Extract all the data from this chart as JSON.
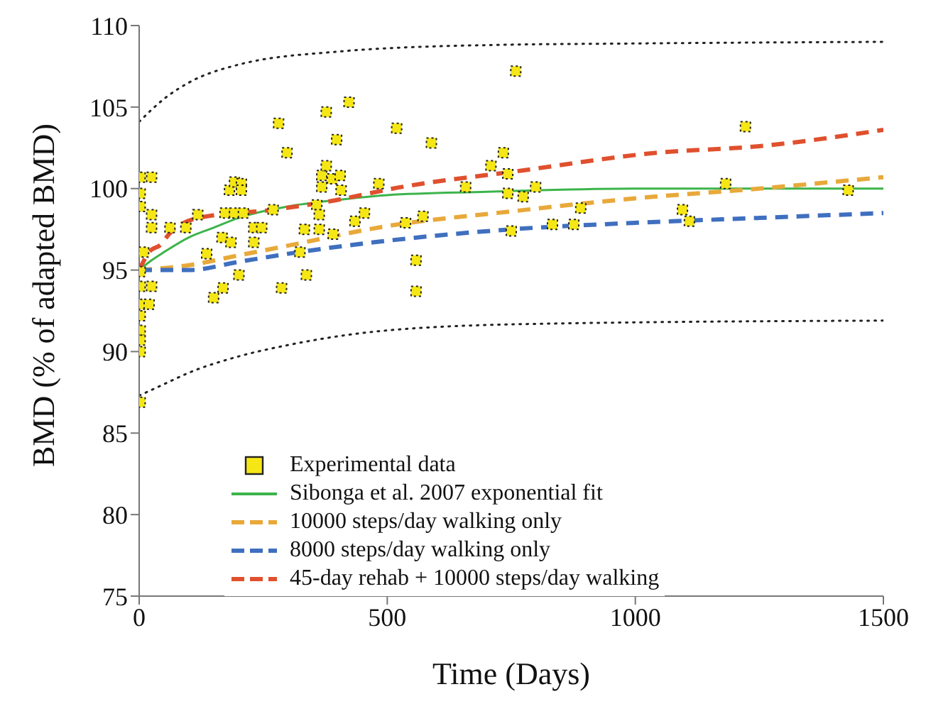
{
  "chart_data": {
    "type": "line",
    "xlabel": "Time (Days)",
    "ylabel": "BMD (% of adapted BMD)",
    "xlim": [
      0,
      1500
    ],
    "xticks": [
      0,
      500,
      1000,
      1500
    ],
    "ylim": [
      75,
      110
    ],
    "yticks": [
      75,
      80,
      85,
      90,
      95,
      100,
      105,
      110
    ],
    "grid": false,
    "legend": "bottom",
    "series": [
      {
        "type": "scatter",
        "name": "Experimental data",
        "color": "#f5e616",
        "marker": "square",
        "x": [
          2,
          25,
          2,
          2,
          25,
          25,
          9,
          2,
          2,
          25,
          2,
          20,
          2,
          2,
          2,
          2,
          2,
          62,
          94,
          118,
          136,
          150,
          169,
          167,
          185,
          201,
          173,
          192,
          210,
          182,
          192,
          206,
          206,
          231,
          247,
          231,
          270,
          281,
          298,
          287,
          333,
          324,
          337,
          363,
          358,
          363,
          368,
          368,
          377,
          389,
          405,
          407,
          398,
          377,
          423,
          391,
          435,
          454,
          483,
          519,
          589,
          759,
          734,
          709,
          743,
          658,
          743,
          774,
          799,
          537,
          572,
          558,
          558,
          750,
          833,
          876,
          890,
          1222,
          1182,
          1429,
          1095,
          1109
        ],
        "values": [
          100.7,
          100.7,
          99.7,
          98.9,
          98.4,
          97.6,
          96.1,
          94.9,
          94.0,
          94.0,
          92.9,
          92.9,
          92.2,
          91.3,
          90.7,
          90.0,
          86.9,
          97.6,
          97.6,
          98.4,
          96.0,
          93.3,
          93.9,
          97.0,
          96.7,
          94.7,
          98.5,
          98.5,
          98.5,
          99.9,
          100.4,
          100.3,
          99.9,
          97.6,
          97.6,
          96.7,
          98.7,
          104.0,
          102.2,
          93.9,
          97.5,
          96.1,
          94.7,
          97.5,
          99.0,
          98.4,
          100.1,
          100.8,
          101.4,
          100.6,
          100.8,
          99.9,
          103.0,
          104.7,
          105.3,
          97.2,
          98.0,
          98.5,
          100.3,
          103.7,
          102.8,
          107.2,
          102.2,
          101.4,
          100.9,
          100.1,
          99.7,
          99.5,
          100.1,
          97.9,
          98.3,
          95.6,
          93.7,
          97.4,
          97.8,
          97.8,
          98.8,
          103.8,
          100.3,
          99.9,
          98.7,
          98.0
        ]
      },
      {
        "type": "line",
        "name": "Sibonga et al. 2007 exponential fit",
        "color": "#3cb44b",
        "line_style": "solid",
        "marker": "none",
        "x": [
          0,
          25,
          50,
          100,
          150,
          200,
          300,
          400,
          500,
          700,
          1000,
          1500
        ],
        "values": [
          95,
          95.6,
          96.1,
          97.0,
          97.6,
          98.2,
          98.9,
          99.3,
          99.6,
          99.8,
          100.0,
          100
        ]
      },
      {
        "type": "line",
        "name": "10000 steps/day walking only",
        "color": "#e8a93a",
        "line_style": "dashed",
        "marker": "none",
        "x": [
          0,
          100,
          200,
          300,
          500,
          750,
          1000,
          1250,
          1500
        ],
        "values": [
          95,
          95.3,
          95.9,
          96.5,
          97.7,
          98.6,
          99.4,
          100.0,
          100.7
        ]
      },
      {
        "type": "line",
        "name": "8000 steps/day walking only",
        "color": "#3f6fbf",
        "line_style": "dashed",
        "marker": "none",
        "x": [
          0,
          100,
          200,
          300,
          500,
          750,
          1000,
          1250,
          1500
        ],
        "values": [
          95,
          95.0,
          95.5,
          96.0,
          96.8,
          97.5,
          97.9,
          98.2,
          98.5
        ]
      },
      {
        "type": "line",
        "name": "45-day rehab + 10000 steps/day walking",
        "color": "#e0502e",
        "line_style": "dashed",
        "marker": "none",
        "x": [
          0,
          20,
          45,
          60,
          120,
          270,
          380,
          530,
          770,
          1045,
          1250,
          1500
        ],
        "values": [
          95,
          96.1,
          96.6,
          97.2,
          98.2,
          98.7,
          99.2,
          100.1,
          101.1,
          102.2,
          102.6,
          103.6
        ]
      },
      {
        "type": "line",
        "color": "#222222",
        "line_style": "dotted",
        "marker": "none",
        "x": [
          0,
          50,
          100,
          200,
          400,
          700,
          1000,
          1500
        ],
        "values": [
          104.1,
          105.5,
          106.5,
          107.6,
          108.4,
          108.8,
          108.9,
          109.0
        ]
      },
      {
        "type": "line",
        "color": "#222222",
        "line_style": "dotted",
        "marker": "none",
        "x": [
          0,
          50,
          100,
          200,
          300,
          500,
          800,
          1500
        ],
        "values": [
          87.3,
          88.0,
          88.7,
          89.7,
          90.4,
          91.3,
          91.7,
          91.9
        ]
      }
    ]
  }
}
